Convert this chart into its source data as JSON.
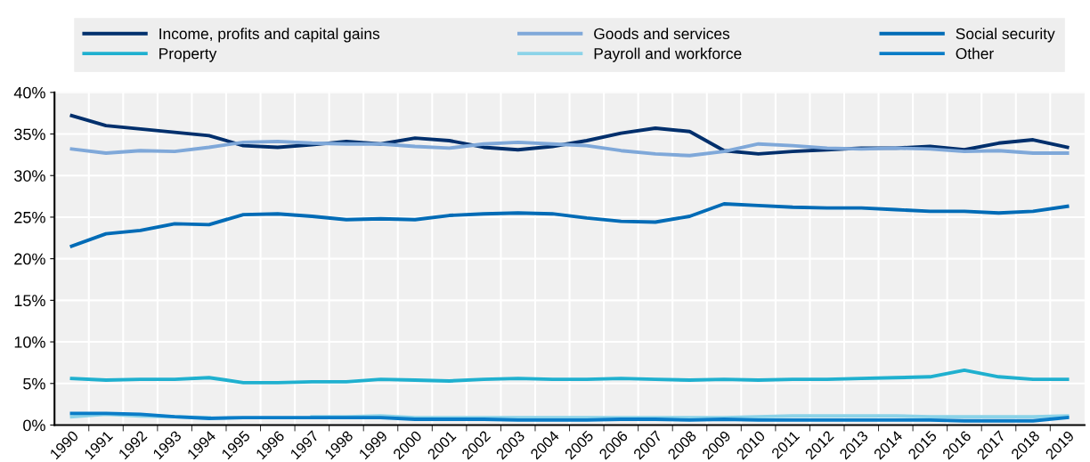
{
  "chart_data": {
    "type": "line",
    "categories": [
      "1990",
      "1991",
      "1992",
      "1993",
      "1994",
      "1995",
      "1996",
      "1997",
      "1998",
      "1999",
      "2000",
      "2001",
      "2002",
      "2003",
      "2004",
      "2005",
      "2006",
      "2007",
      "2008",
      "2009",
      "2010",
      "2011",
      "2012",
      "2013",
      "2014",
      "2015",
      "2016",
      "2017",
      "2018",
      "2019"
    ],
    "series": [
      {
        "name": "Income, profits and capital gains",
        "color": "#002f6c",
        "values": [
          37.2,
          36.0,
          35.6,
          35.2,
          34.8,
          33.6,
          33.4,
          33.7,
          34.1,
          33.8,
          34.5,
          34.2,
          33.4,
          33.1,
          33.5,
          34.2,
          35.1,
          35.7,
          35.3,
          33.0,
          32.6,
          32.9,
          33.1,
          33.3,
          33.3,
          33.5,
          33.1,
          33.9,
          34.3,
          33.4
        ]
      },
      {
        "name": "Goods and services",
        "color": "#7fa8d9",
        "values": [
          33.2,
          32.7,
          33.0,
          32.9,
          33.4,
          34.0,
          34.1,
          33.9,
          33.8,
          33.8,
          33.5,
          33.3,
          33.8,
          34.0,
          33.8,
          33.6,
          33.0,
          32.6,
          32.4,
          32.9,
          33.8,
          33.6,
          33.3,
          33.2,
          33.3,
          33.2,
          32.9,
          33.0,
          32.7,
          32.7
        ]
      },
      {
        "name": "Social security",
        "color": "#006bb6",
        "values": [
          21.5,
          23.0,
          23.4,
          24.2,
          24.1,
          25.3,
          25.4,
          25.1,
          24.7,
          24.8,
          24.7,
          25.2,
          25.4,
          25.5,
          25.4,
          24.9,
          24.5,
          24.4,
          25.1,
          26.6,
          26.4,
          26.2,
          26.1,
          26.1,
          25.9,
          25.7,
          25.7,
          25.5,
          25.7,
          26.3
        ]
      },
      {
        "name": "Property",
        "color": "#1fb0cf",
        "values": [
          5.6,
          5.4,
          5.5,
          5.5,
          5.7,
          5.1,
          5.1,
          5.2,
          5.2,
          5.5,
          5.4,
          5.3,
          5.5,
          5.6,
          5.5,
          5.5,
          5.6,
          5.5,
          5.4,
          5.5,
          5.4,
          5.5,
          5.5,
          5.6,
          5.7,
          5.8,
          6.6,
          5.8,
          5.5,
          5.5
        ]
      },
      {
        "name": "Payroll and workforce",
        "color": "#8cd3e8",
        "values": [
          1.0,
          1.3,
          1.1,
          1.0,
          0.9,
          null,
          null,
          1.0,
          1.0,
          1.1,
          0.9,
          0.9,
          0.9,
          0.9,
          0.9,
          0.9,
          0.9,
          0.9,
          0.9,
          0.9,
          1.0,
          1.1,
          1.1,
          1.1,
          1.1,
          1.0,
          1.0,
          1.0,
          1.0,
          1.1
        ]
      },
      {
        "name": "Other",
        "color": "#0a7cc7",
        "values": [
          1.4,
          1.4,
          1.3,
          1.0,
          0.8,
          0.9,
          0.9,
          0.9,
          0.9,
          0.9,
          0.7,
          0.7,
          0.7,
          0.6,
          0.6,
          0.6,
          0.7,
          0.7,
          0.6,
          0.7,
          0.6,
          0.6,
          0.6,
          0.6,
          0.6,
          0.6,
          0.5,
          0.5,
          0.5,
          0.9
        ]
      }
    ],
    "ylim": [
      0,
      40
    ],
    "yticks": [
      {
        "value": 0,
        "label": "0%"
      },
      {
        "value": 5,
        "label": "5%"
      },
      {
        "value": 10,
        "label": "10%"
      },
      {
        "value": 15,
        "label": "15%"
      },
      {
        "value": 20,
        "label": "20%"
      },
      {
        "value": 25,
        "label": "25%"
      },
      {
        "value": 30,
        "label": "30%"
      },
      {
        "value": 35,
        "label": "35%"
      },
      {
        "value": 40,
        "label": "40%"
      }
    ],
    "grid": true,
    "legend": "top",
    "marker": "none",
    "line_style": "solid"
  }
}
